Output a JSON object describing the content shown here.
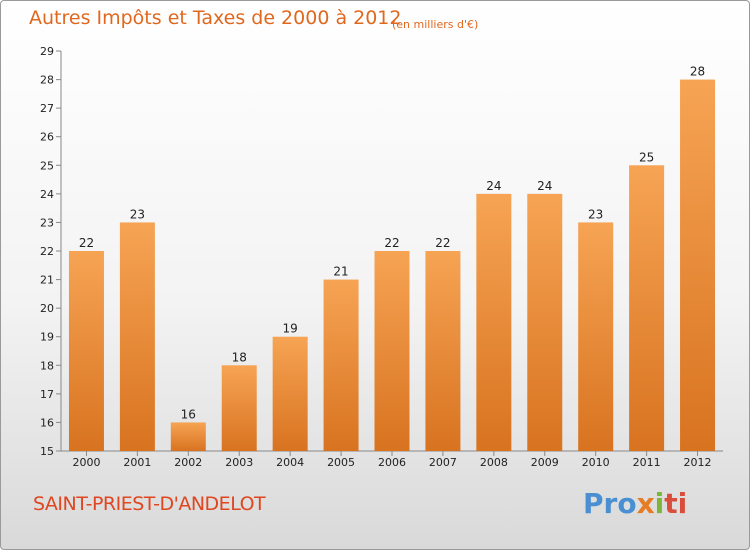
{
  "title": "Autres Impôts et Taxes de 2000 à 2012",
  "unit_note": "(en milliers d'€)",
  "commune": "SAINT-PRIEST-D'ANDELOT",
  "logo": {
    "p1": "Pro",
    "p2": "x",
    "p3": "i",
    "p4": "ti"
  },
  "colors": {
    "bar": "#f0923a",
    "bar_top": "#f6a454",
    "bar_bottom": "#d87320",
    "title": "#e0681e"
  },
  "chart_data": {
    "type": "bar",
    "categories": [
      "2000",
      "2001",
      "2002",
      "2003",
      "2004",
      "2005",
      "2006",
      "2007",
      "2008",
      "2009",
      "2010",
      "2011",
      "2012"
    ],
    "values": [
      22,
      23,
      16,
      18,
      19,
      21,
      22,
      22,
      24,
      24,
      23,
      25,
      28
    ],
    "ylim": [
      15,
      29
    ],
    "yticks": [
      15,
      16,
      17,
      18,
      19,
      20,
      21,
      22,
      23,
      24,
      25,
      26,
      27,
      28,
      29
    ],
    "grid": false,
    "legend": "none"
  }
}
